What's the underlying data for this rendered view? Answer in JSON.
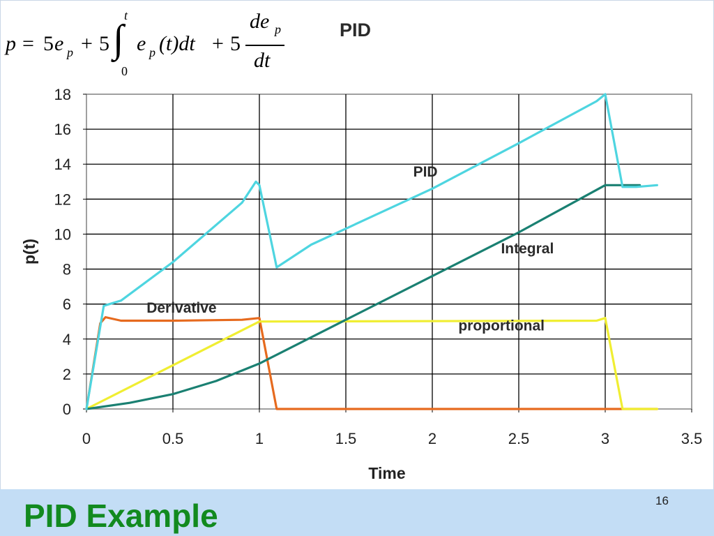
{
  "slide": {
    "title": "PID Example",
    "number": "16"
  },
  "formula": {
    "p": "p",
    "eq": "=",
    "coef1": "5",
    "e1": "e",
    "sub1": "p",
    "plus1": "+",
    "coef2": "5",
    "int_sym": "∫",
    "int_upper": "t",
    "int_lower": "0",
    "e2": "e",
    "sub2": "p",
    "arg": "(t)dt",
    "plus2": "+",
    "coef3": "5",
    "num": "de",
    "num_sub": "p",
    "den": "dt"
  },
  "chart_data": {
    "type": "line",
    "title": "PID",
    "xlabel": "Time",
    "ylabel": "p(t)",
    "xlim": [
      0,
      3.5
    ],
    "ylim": [
      0,
      18
    ],
    "xticks": [
      "0",
      "0.5",
      "1",
      "1.5",
      "2",
      "2.5",
      "3",
      "3.5"
    ],
    "yticks": [
      "0",
      "2",
      "4",
      "6",
      "8",
      "10",
      "12",
      "14",
      "16",
      "18"
    ],
    "grid": true,
    "legend": "none",
    "series": [
      {
        "name": "Derivative",
        "color": "#e66a1e",
        "points": [
          [
            0,
            0
          ],
          [
            0.08,
            4.9
          ],
          [
            0.11,
            5.25
          ],
          [
            0.2,
            5.05
          ],
          [
            0.5,
            5.05
          ],
          [
            0.9,
            5.1
          ],
          [
            1.0,
            5.2
          ],
          [
            1.1,
            0
          ],
          [
            1.2,
            0
          ],
          [
            3.3,
            0
          ]
        ]
      },
      {
        "name": "proportional",
        "color": "#f0ee32",
        "points": [
          [
            0,
            0
          ],
          [
            1.0,
            5.0
          ],
          [
            2.95,
            5.05
          ],
          [
            3.0,
            5.2
          ],
          [
            3.1,
            0
          ],
          [
            3.3,
            0
          ]
        ]
      },
      {
        "name": "Integral",
        "color": "#1a8072",
        "points": [
          [
            0,
            0
          ],
          [
            0.25,
            0.35
          ],
          [
            0.5,
            0.85
          ],
          [
            0.75,
            1.6
          ],
          [
            1.0,
            2.6
          ],
          [
            1.5,
            5.1
          ],
          [
            2.0,
            7.6
          ],
          [
            2.5,
            10.1
          ],
          [
            3.0,
            12.8
          ],
          [
            3.2,
            12.8
          ]
        ]
      },
      {
        "name": "PID",
        "color": "#4ed5e0",
        "points": [
          [
            0,
            0
          ],
          [
            0.1,
            5.9
          ],
          [
            0.2,
            6.2
          ],
          [
            0.5,
            8.4
          ],
          [
            0.9,
            11.8
          ],
          [
            0.98,
            13.0
          ],
          [
            1.0,
            12.8
          ],
          [
            1.1,
            8.1
          ],
          [
            1.3,
            9.4
          ],
          [
            2.0,
            12.6
          ],
          [
            2.5,
            15.2
          ],
          [
            2.95,
            17.6
          ],
          [
            3.0,
            18.0
          ],
          [
            3.1,
            12.7
          ],
          [
            3.18,
            12.7
          ],
          [
            3.3,
            12.8
          ]
        ]
      }
    ],
    "annotations": [
      {
        "text": "PID",
        "x": 1.96,
        "y": 13.3
      },
      {
        "text": "Integral",
        "x": 2.55,
        "y": 8.9
      },
      {
        "text": "Derivative",
        "x": 0.55,
        "y": 5.5
      },
      {
        "text": "proportional",
        "x": 2.4,
        "y": 4.5
      }
    ]
  }
}
